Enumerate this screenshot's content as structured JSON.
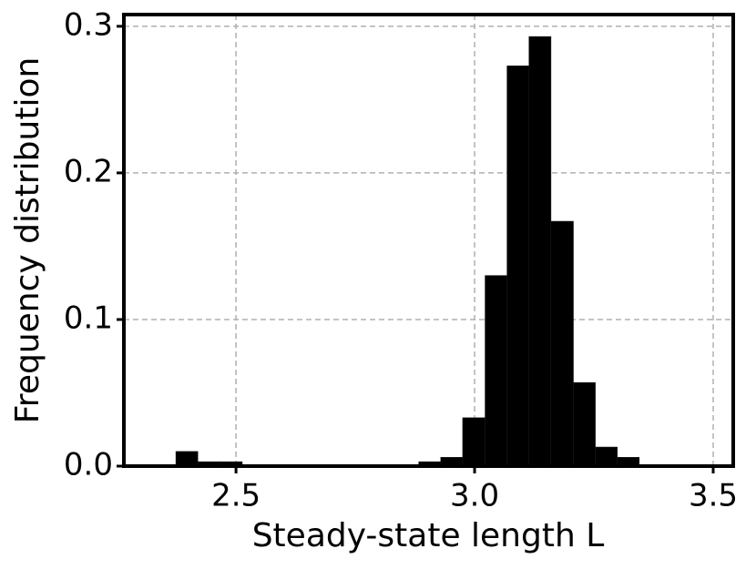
{
  "chart_data": {
    "type": "histogram",
    "xlabel": "Steady-state length L",
    "ylabel": "Frequency distribution",
    "bins": [
      2.374,
      2.42,
      2.467,
      2.513,
      2.559,
      2.605,
      2.652,
      2.698,
      2.744,
      2.79,
      2.837,
      2.883,
      2.929,
      2.975,
      3.022,
      3.068,
      3.114,
      3.16,
      3.207,
      3.253,
      3.299,
      3.345
    ],
    "values": [
      0.01,
      0.003,
      0.003,
      0,
      0,
      0,
      0,
      0,
      0,
      0,
      0,
      0.003,
      0.006,
      0.033,
      0.13,
      0.273,
      0.293,
      0.167,
      0.057,
      0.013,
      0.006
    ],
    "color": "#000000",
    "xlim": [
      2.265,
      3.542
    ],
    "xticks": [
      2.5,
      {
        "value": 3,
        "label": "3.0"
      },
      3.5
    ],
    "ylim": [
      0,
      0.308
    ],
    "yticks": [
      {
        "value": 0,
        "label": "0.0"
      },
      0.1,
      0.2,
      0.3
    ],
    "grid": true
  }
}
